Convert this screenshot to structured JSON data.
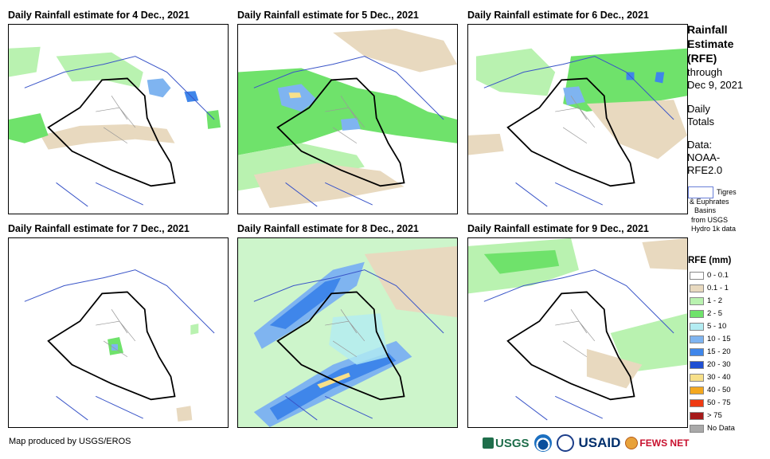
{
  "panels": [
    {
      "title": "Daily Rainfall estimate for 4 Dec., 2021"
    },
    {
      "title": "Daily Rainfall estimate for 5 Dec., 2021"
    },
    {
      "title": "Daily Rainfall estimate for 6 Dec., 2021"
    },
    {
      "title": "Daily Rainfall estimate for 7 Dec., 2021"
    },
    {
      "title": "Daily Rainfall estimate for 8 Dec., 2021"
    },
    {
      "title": "Daily Rainfall estimate for 9 Dec., 2021"
    }
  ],
  "sidebar": {
    "title_lines": [
      "Rainfall",
      "Estimate",
      "(RFE)"
    ],
    "through_label": "through",
    "through_date": "Dec 9, 2021",
    "daily_line1": "Daily",
    "daily_line2": "Totals",
    "data_line1": "Data:",
    "data_line2": "NOAA-",
    "data_line3": "RFE2.0"
  },
  "basins_note": {
    "line1": "Tigres",
    "line2": "& Euphrates",
    "line3": "Basins",
    "line4": "from USGS",
    "line5": "Hydro 1k data"
  },
  "legend": {
    "title": "RFE (mm)",
    "items": [
      {
        "label": "0 - 0.1",
        "color": "#ffffff"
      },
      {
        "label": "0.1 - 1",
        "color": "#e8d9bf"
      },
      {
        "label": "1 - 2",
        "color": "#b9f2b0"
      },
      {
        "label": "2 - 5",
        "color": "#6fe26b"
      },
      {
        "label": "5 - 10",
        "color": "#b3ecf2"
      },
      {
        "label": "10 - 15",
        "color": "#7fb4f0"
      },
      {
        "label": "15 - 20",
        "color": "#3f86ea"
      },
      {
        "label": "20 - 30",
        "color": "#1f4fd2"
      },
      {
        "label": "30 - 40",
        "color": "#f7e08a"
      },
      {
        "label": "40 - 50",
        "color": "#f4a81f"
      },
      {
        "label": "50 - 75",
        "color": "#ef3a12"
      },
      {
        "label": "> 75",
        "color": "#a51a1a"
      },
      {
        "label": "No Data",
        "color": "#a9a9a9"
      }
    ]
  },
  "credit": "Map produced by USGS/EROS",
  "logos": {
    "usgs": "USGS",
    "usaid": "USAID",
    "fews": "FEWS NET"
  }
}
